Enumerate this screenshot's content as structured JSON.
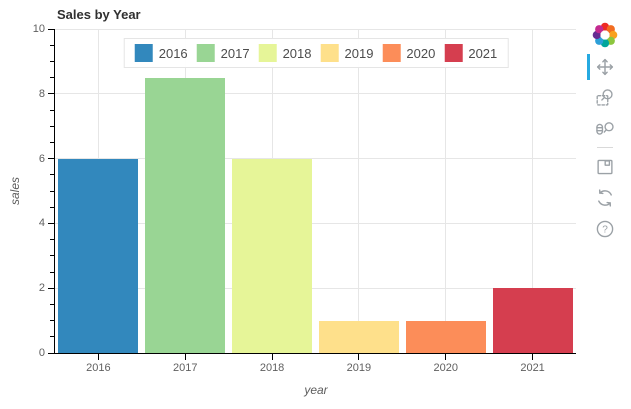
{
  "title": "Sales by Year",
  "chart_data": {
    "type": "bar",
    "categories": [
      "2016",
      "2017",
      "2018",
      "2019",
      "2020",
      "2021"
    ],
    "values": [
      6,
      8.5,
      6,
      1,
      1,
      2
    ],
    "bar_colors": [
      "#3288bd",
      "#99d594",
      "#e6f598",
      "#fee08b",
      "#fc8d59",
      "#d53e4f"
    ],
    "title": "Sales by Year",
    "xlabel": "year",
    "ylabel": "sales",
    "ylim": [
      0,
      10
    ],
    "yticks": [
      0,
      2,
      4,
      6,
      8,
      10
    ],
    "minor_tick_step": 0.5,
    "grid": true,
    "legend_entries": [
      "2016",
      "2017",
      "2018",
      "2019",
      "2020",
      "2021"
    ],
    "legend_position": "top-center-inside",
    "bar_width_fraction": 0.92
  },
  "toolbar": {
    "logo": "bokeh-logo",
    "tools": [
      "pan",
      "box-zoom",
      "wheel-zoom",
      "save",
      "reset",
      "help"
    ],
    "active_tool": "pan",
    "active_indicator_color": "#26aae1",
    "icon_color": "#9ba1a6"
  },
  "colors": {
    "grid": "#e6e6e6",
    "axis": "#000000",
    "tick_label": "#5f5f5f",
    "title": "#303030",
    "legend_text": "#4d4d4d",
    "background": "#ffffff"
  }
}
